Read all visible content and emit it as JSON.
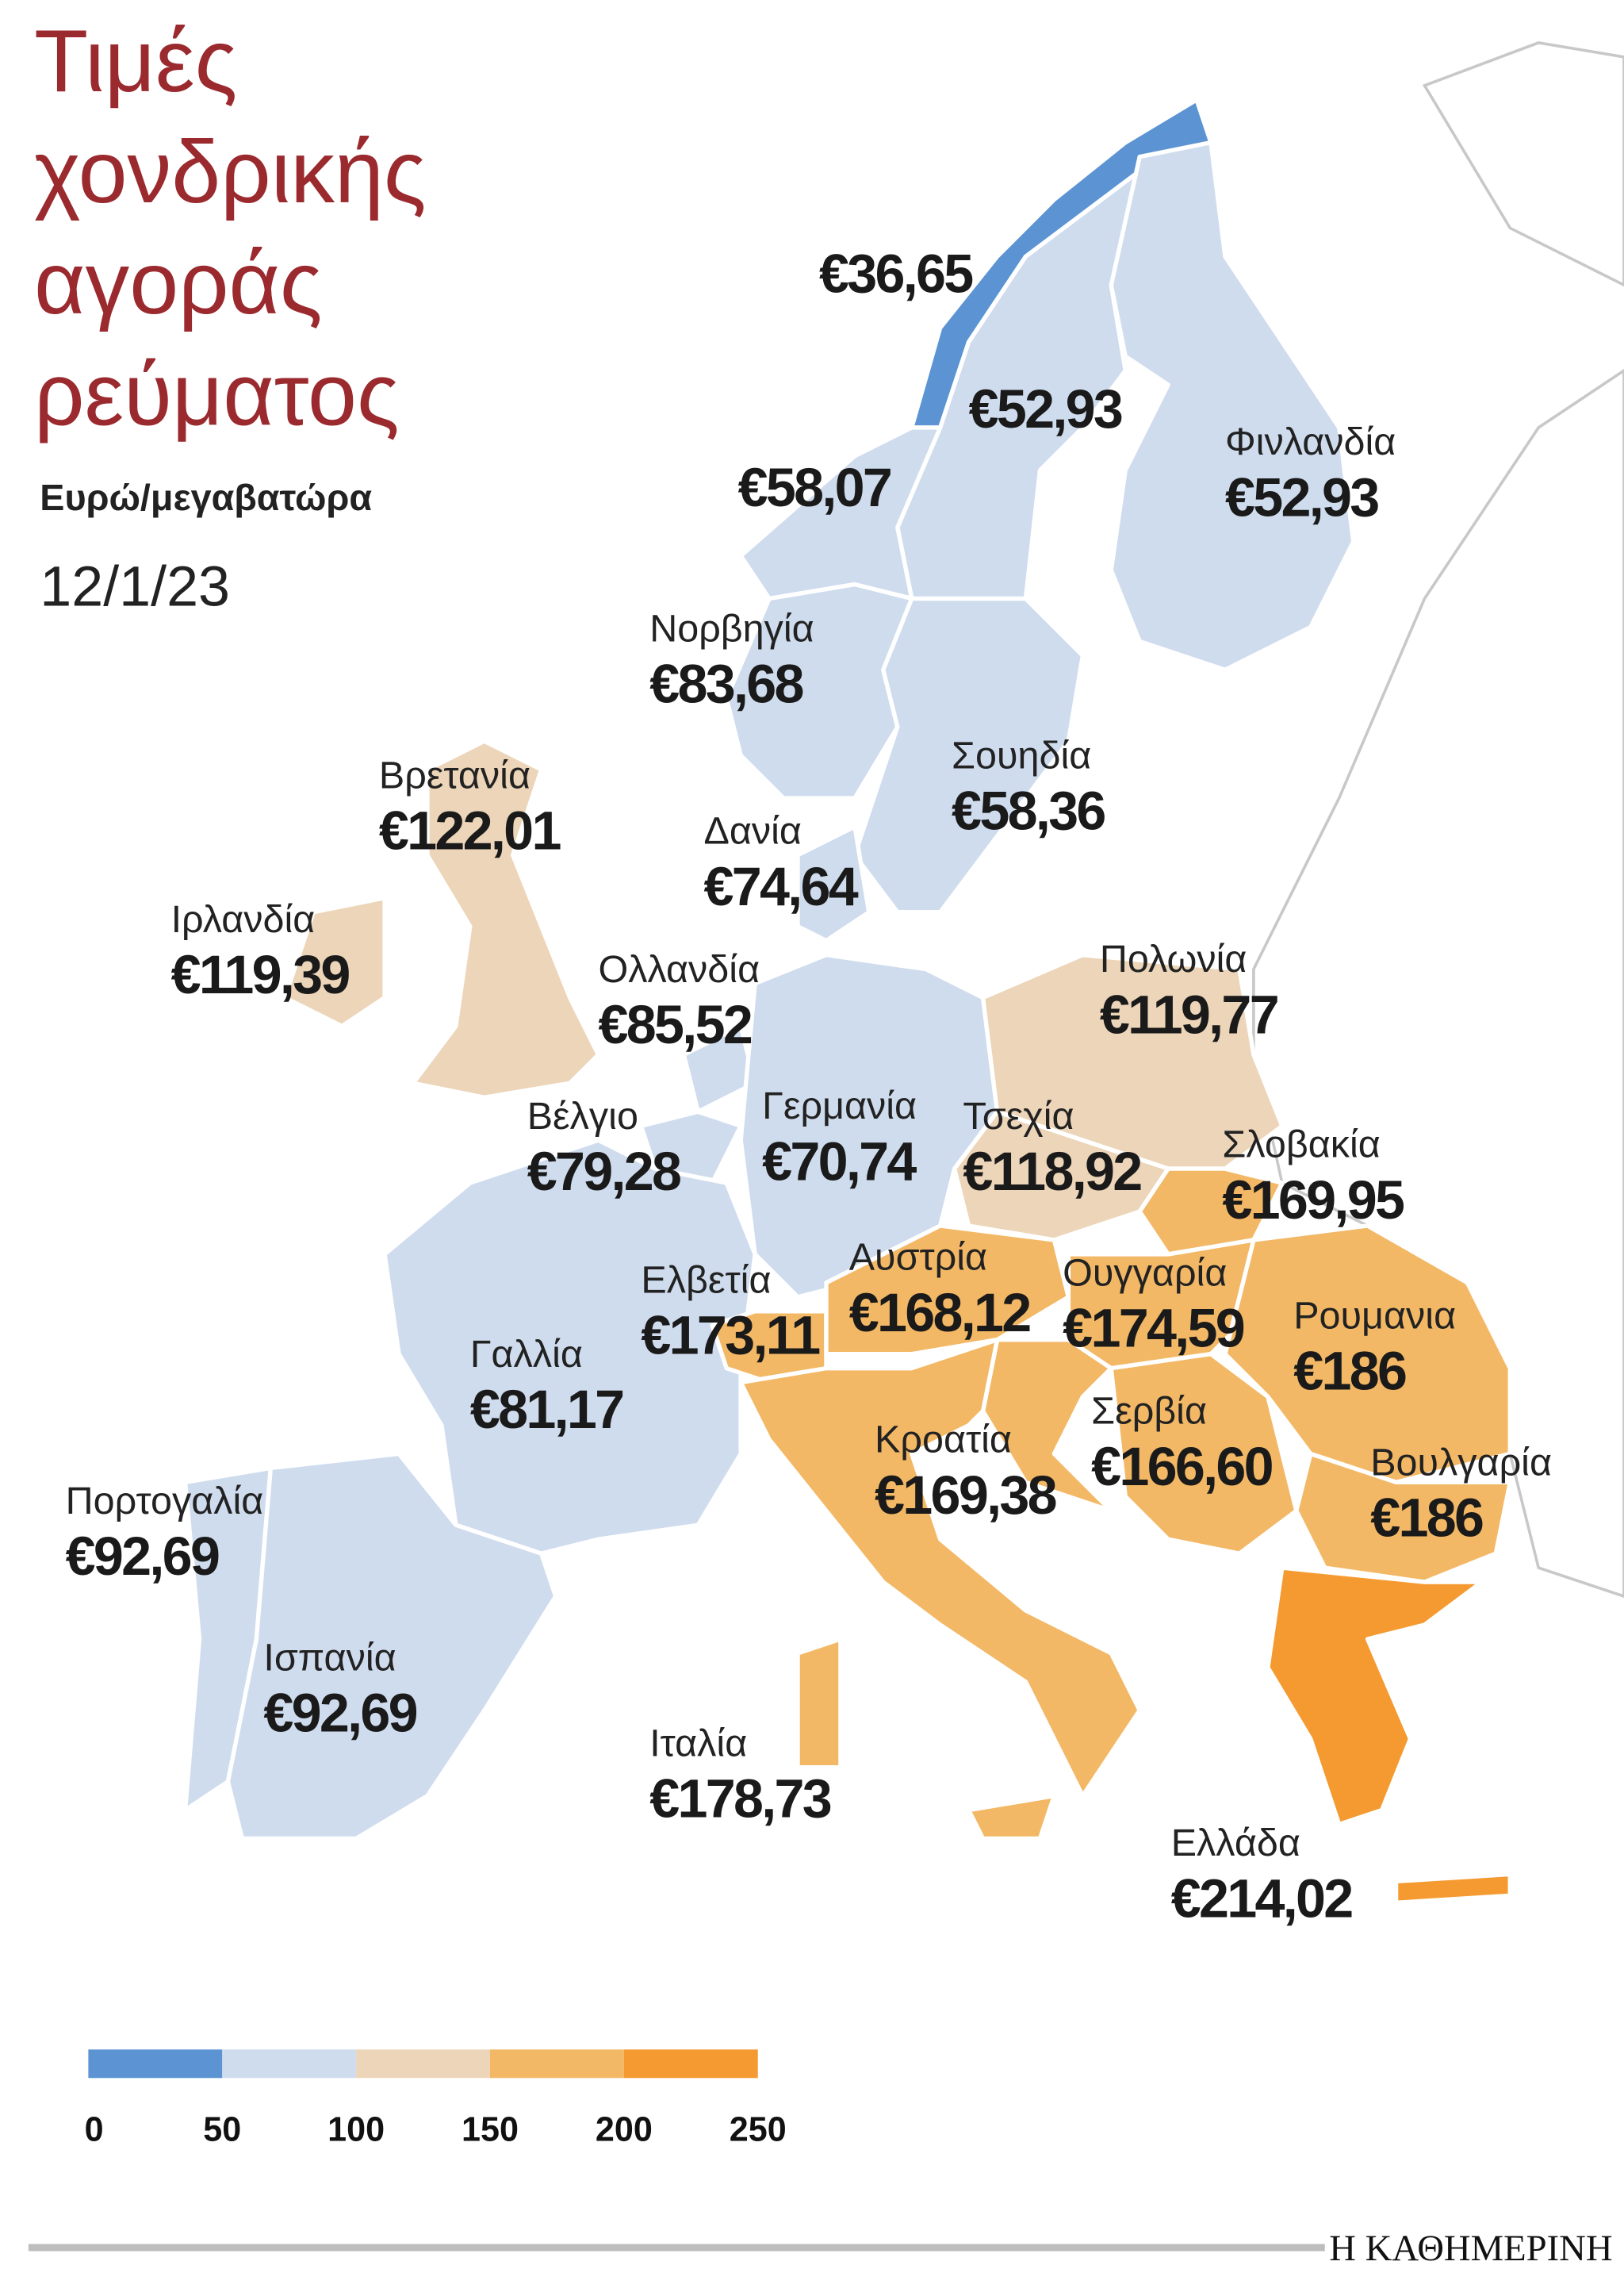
{
  "chart_data": {
    "type": "choropleth",
    "title_lines": [
      "Τιμές",
      "χονδρικής",
      "αγοράς",
      "ρεύματος"
    ],
    "subtitle": "Ευρώ/μεγαβατώρα",
    "date": "12/1/23",
    "categories": [
      null,
      null,
      null,
      "Φινλανδία",
      "Νορβηγία",
      "Σουηδία",
      "Βρετανία",
      "Ιρλανδία",
      "Δανία",
      "Ολλανδία",
      "Βέλγιο",
      "Γερμανία",
      "Γαλλία",
      "Πορτογαλία",
      "Ισπανία",
      "Πολωνία",
      "Τσεχία",
      "Σλοβακία",
      "Ελβετία",
      "Αυστρία",
      "Ουγγαρία",
      "Ρουμανια",
      "Κροατία",
      "Σερβία",
      "Βουλγαρία",
      "Ιταλία",
      "Ελλάδα"
    ],
    "values": [
      36.65,
      52.93,
      58.07,
      52.93,
      83.68,
      58.36,
      122.01,
      119.39,
      74.64,
      85.52,
      79.28,
      70.74,
      81.17,
      92.69,
      92.69,
      119.77,
      118.92,
      169.95,
      173.11,
      168.12,
      174.59,
      186,
      169.38,
      166.6,
      186,
      178.73,
      214.02
    ],
    "value_labels": [
      "€36,65",
      "€52,93",
      "€58,07",
      "€52,93",
      "€83,68",
      "€58,36",
      "€122,01",
      "€119,39",
      "€74,64",
      "€85,52",
      "€79,28",
      "€70,74",
      "€81,17",
      "€92,69",
      "€92,69",
      "€119,77",
      "€118,92",
      "€169,95",
      "€173,11",
      "€168,12",
      "€174,59",
      "€186",
      "€169,38",
      "€166,60",
      "€186",
      "€178,73",
      "€214,02"
    ],
    "legend_ticks": [
      0,
      50,
      100,
      150,
      200,
      250
    ],
    "legend_colors": [
      "#5b93d3",
      "#cfdcee",
      "#ecd5b8",
      "#f3b865",
      "#f59a30"
    ]
  },
  "footer": {
    "brand": "Η ΚΑΘΗΜΕΡΙΝΗ"
  }
}
